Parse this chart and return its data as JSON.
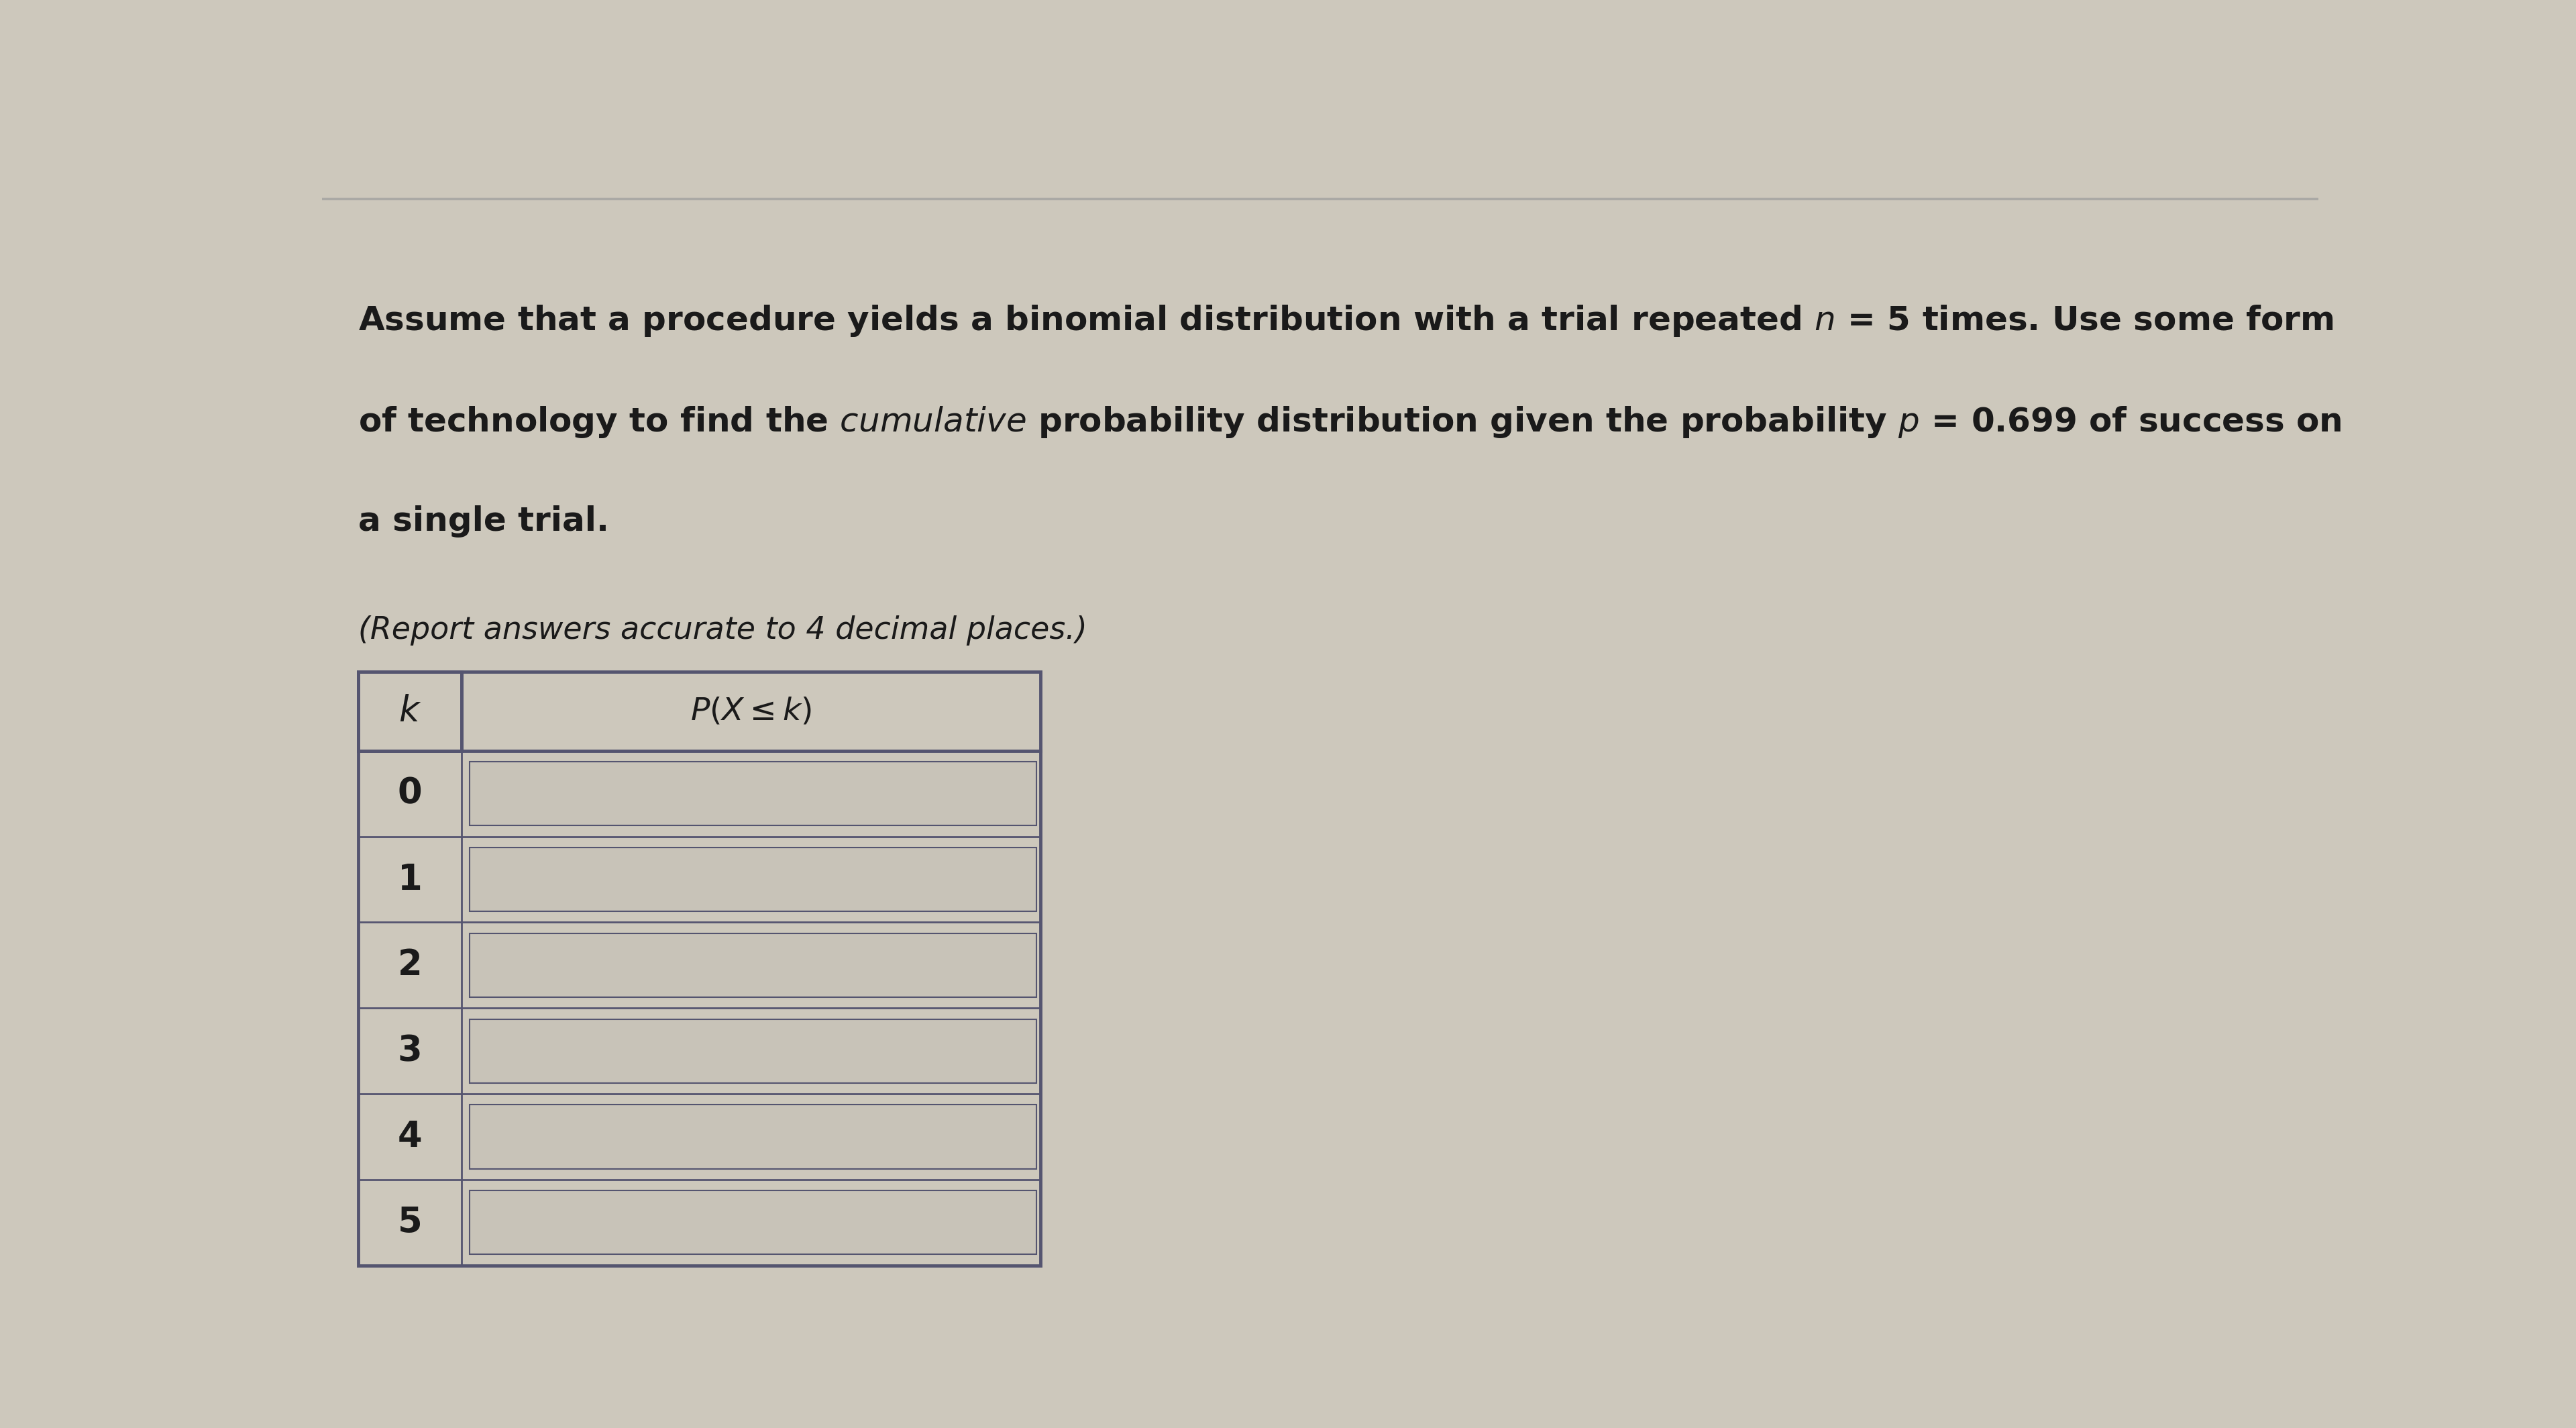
{
  "background_color": "#cdc8bc",
  "text_color": "#1a1a1a",
  "subtitle": "(Report answers accurate to 4 decimal places.)",
  "k_values": [
    0,
    1,
    2,
    3,
    4,
    5
  ],
  "input_box_color": "#c8c3b8",
  "table_border_color": "#555570",
  "font_size_title": 36,
  "font_size_subtitle": 33,
  "font_size_table_num": 38,
  "font_size_header": 34
}
